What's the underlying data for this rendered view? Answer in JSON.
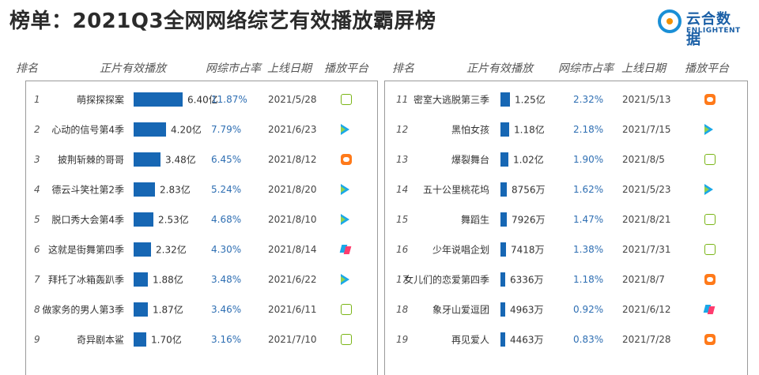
{
  "title": "榜单：2021Q3全网网络综艺有效播放霸屏榜",
  "logo": {
    "cn": "云合数据",
    "en": "ENLIGHTENT"
  },
  "headers": {
    "rank": "排名",
    "views": "正片有效播放",
    "share": "网综市占率",
    "date": "上线日期",
    "platform": "播放平台"
  },
  "chart_data": {
    "type": "bar",
    "bar_color": "#1767b4",
    "rows": [
      {
        "rank": "1",
        "name": "萌探探探案",
        "value": 6.4,
        "label": "6.40亿",
        "share": "11.87%",
        "date": "2021/5/28",
        "platform": "iqiyi-icon"
      },
      {
        "rank": "2",
        "name": "心动的信号第4季",
        "value": 4.2,
        "label": "4.20亿",
        "share": "7.79%",
        "date": "2021/6/23",
        "platform": "tencent-icon"
      },
      {
        "rank": "3",
        "name": "披荆斩棘的哥哥",
        "value": 3.48,
        "label": "3.48亿",
        "share": "6.45%",
        "date": "2021/8/12",
        "platform": "mango-icon"
      },
      {
        "rank": "4",
        "name": "德云斗笑社第2季",
        "value": 2.83,
        "label": "2.83亿",
        "share": "5.24%",
        "date": "2021/8/20",
        "platform": "tencent-icon"
      },
      {
        "rank": "5",
        "name": "脱口秀大会第4季",
        "value": 2.53,
        "label": "2.53亿",
        "share": "4.68%",
        "date": "2021/8/10",
        "platform": "tencent-icon"
      },
      {
        "rank": "6",
        "name": "这就是街舞第四季",
        "value": 2.32,
        "label": "2.32亿",
        "share": "4.30%",
        "date": "2021/8/14",
        "platform": "youku-icon"
      },
      {
        "rank": "7",
        "name": "拜托了冰箱轰趴季",
        "value": 1.88,
        "label": "1.88亿",
        "share": "3.48%",
        "date": "2021/6/22",
        "platform": "tencent-icon"
      },
      {
        "rank": "8",
        "name": "做家务的男人第3季",
        "value": 1.87,
        "label": "1.87亿",
        "share": "3.46%",
        "date": "2021/6/11",
        "platform": "iqiyi-icon"
      },
      {
        "rank": "9",
        "name": "奇异剧本鲨",
        "value": 1.7,
        "label": "1.70亿",
        "share": "3.16%",
        "date": "2021/7/10",
        "platform": "iqiyi-icon"
      },
      {
        "rank": "11",
        "name": "密室大逃脱第三季",
        "value": 1.25,
        "label": "1.25亿",
        "share": "2.32%",
        "date": "2021/5/13",
        "platform": "mango-icon"
      },
      {
        "rank": "12",
        "name": "黑怕女孩",
        "value": 1.18,
        "label": "1.18亿",
        "share": "2.18%",
        "date": "2021/7/15",
        "platform": "tencent-icon"
      },
      {
        "rank": "13",
        "name": "爆裂舞台",
        "value": 1.02,
        "label": "1.02亿",
        "share": "1.90%",
        "date": "2021/8/5",
        "platform": "iqiyi-icon"
      },
      {
        "rank": "14",
        "name": "五十公里桃花坞",
        "value": 0.8756,
        "label": "8756万",
        "share": "1.62%",
        "date": "2021/5/23",
        "platform": "tencent-icon"
      },
      {
        "rank": "15",
        "name": "舞蹈生",
        "value": 0.7926,
        "label": "7926万",
        "share": "1.47%",
        "date": "2021/8/21",
        "platform": "iqiyi-icon"
      },
      {
        "rank": "16",
        "name": "少年说唱企划",
        "value": 0.7418,
        "label": "7418万",
        "share": "1.38%",
        "date": "2021/7/31",
        "platform": "iqiyi-icon"
      },
      {
        "rank": "17",
        "name": "女儿们的恋爱第四季",
        "value": 0.6336,
        "label": "6336万",
        "share": "1.18%",
        "date": "2021/8/7",
        "platform": "mango-icon"
      },
      {
        "rank": "18",
        "name": "象牙山爱逗团",
        "value": 0.4963,
        "label": "4963万",
        "share": "0.92%",
        "date": "2021/6/12",
        "platform": "youku-icon"
      },
      {
        "rank": "19",
        "name": "再见爱人",
        "value": 0.4463,
        "label": "4463万",
        "share": "0.83%",
        "date": "2021/7/28",
        "platform": "mango-icon"
      }
    ]
  }
}
